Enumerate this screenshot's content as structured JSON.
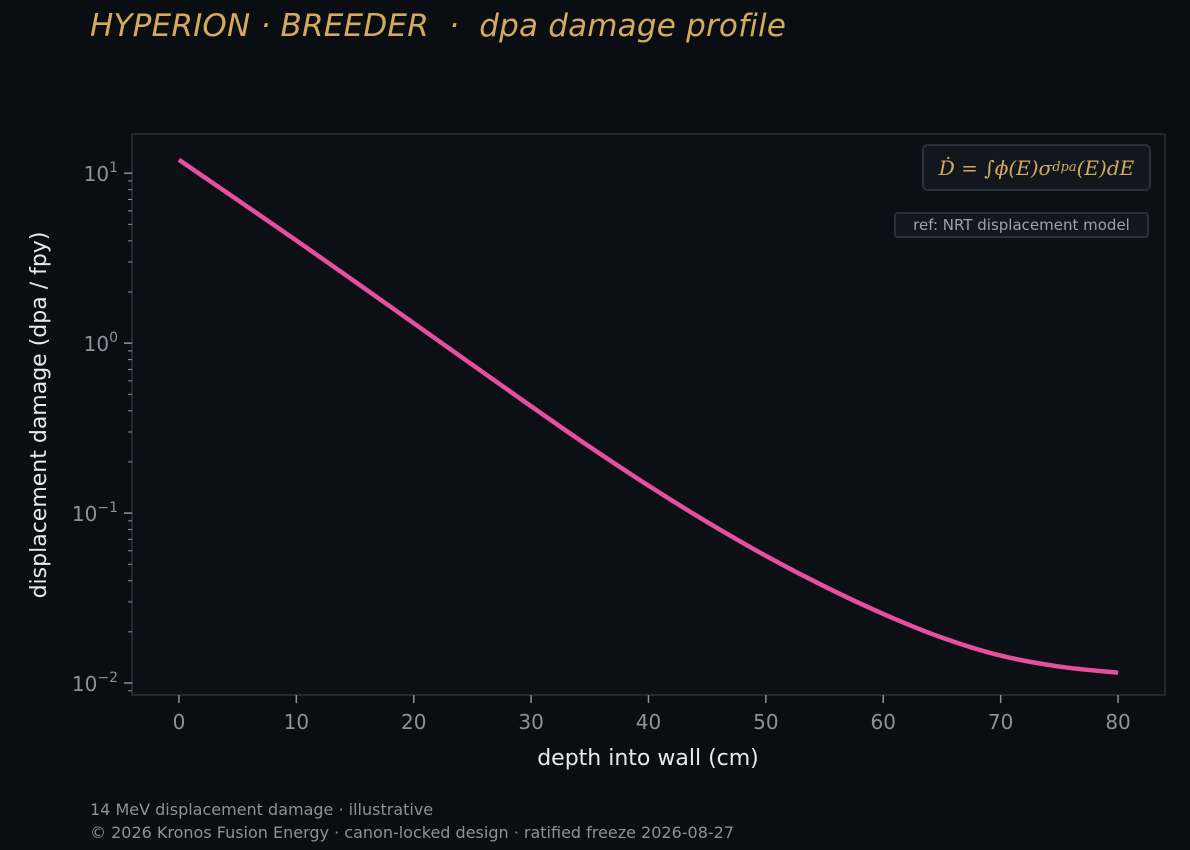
{
  "header": {
    "title": "HYPERION · BREEDER  ·  dpa damage profile"
  },
  "annotations": {
    "equation": "Ḋ = ∫ϕ(E)σdpa(E)dE",
    "equation_parts": {
      "lhs": "Ḋ = ∫",
      "phi": "ϕ(E)",
      "sigma": "σ",
      "sigma_sub": "dpa",
      "tail": "(E)dE"
    },
    "ref": "ref: NRT displacement model"
  },
  "footer": {
    "line1": "14 MeV displacement damage · illustrative",
    "line2": "© 2026 Kronos Fusion Energy · canon-locked design · ratified freeze 2026-08-27"
  },
  "colors": {
    "background": "#0a0d12",
    "plot_background": "#0d0f16",
    "series": "#e64f9c",
    "accent": "#d4aa5c",
    "tick_text": "#8a929d",
    "label_text": "#e6e9ee"
  },
  "chart_data": {
    "type": "line",
    "title": "HYPERION · BREEDER  ·  dpa damage profile",
    "xlabel": "depth into wall (cm)",
    "ylabel": "displacement damage (dpa / fpy)",
    "xlim": [
      -4,
      84
    ],
    "ylim": [
      0.0085,
      17
    ],
    "yscale": "log",
    "grid": false,
    "xticks": [
      0,
      10,
      20,
      30,
      40,
      50,
      60,
      70,
      80
    ],
    "xtick_labels": [
      "0",
      "10",
      "20",
      "30",
      "40",
      "50",
      "60",
      "70",
      "80"
    ],
    "yticks": [
      0.01,
      0.1,
      1,
      10
    ],
    "ytick_labels": [
      {
        "base": "10",
        "exp": "−2"
      },
      {
        "base": "10",
        "exp": "−1"
      },
      {
        "base": "10",
        "exp": "0"
      },
      {
        "base": "10",
        "exp": "1"
      }
    ],
    "series": [
      {
        "x": [
          0,
          5,
          10,
          15,
          20,
          25,
          30,
          35,
          40,
          45,
          50,
          55,
          60,
          65,
          70,
          75,
          80
        ],
        "y": [
          12.0,
          6.95,
          4.02,
          2.3,
          1.31,
          0.745,
          0.425,
          0.245,
          0.145,
          0.0885,
          0.056,
          0.037,
          0.0255,
          0.0185,
          0.0145,
          0.0125,
          0.0115
        ]
      }
    ]
  }
}
